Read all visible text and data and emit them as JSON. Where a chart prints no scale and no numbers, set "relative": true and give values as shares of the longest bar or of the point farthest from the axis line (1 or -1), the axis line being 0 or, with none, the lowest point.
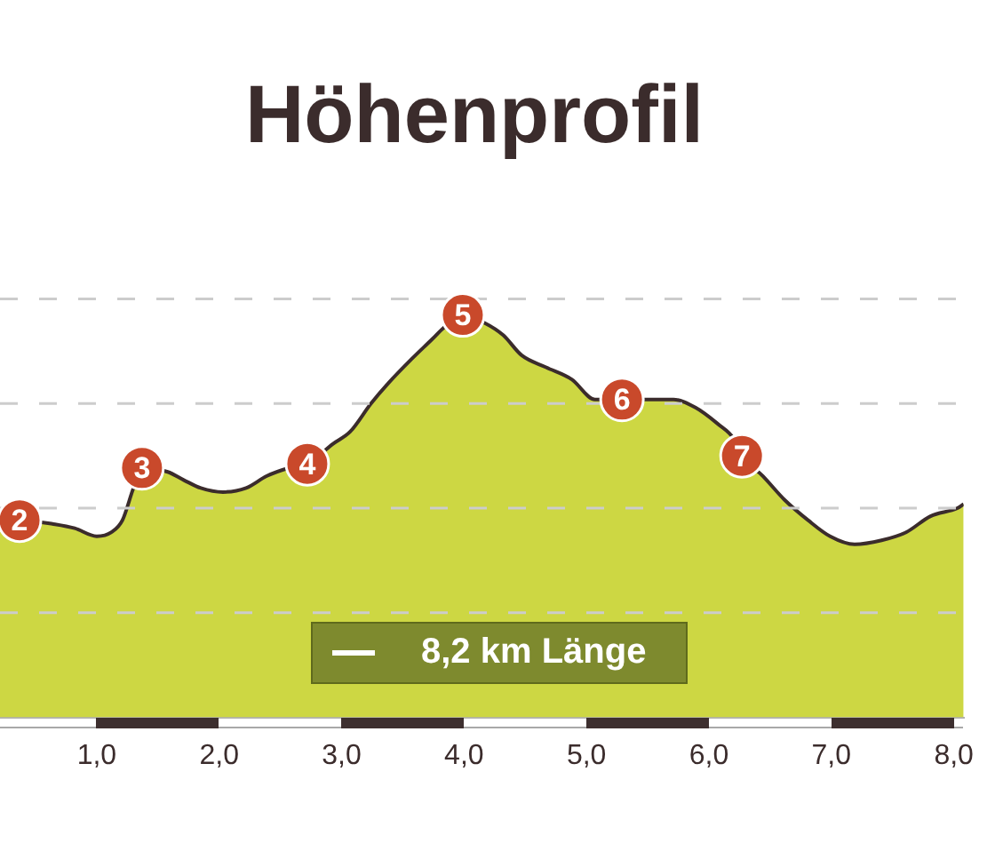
{
  "chart_data": {
    "type": "area",
    "title": "Höhenprofil",
    "relative": true,
    "x": [
      0.21,
      0.37,
      0.66,
      0.82,
      1.0,
      1.12,
      1.21,
      1.3,
      1.37,
      1.58,
      1.71,
      1.85,
      2.03,
      2.22,
      2.39,
      2.57,
      2.72,
      2.93,
      3.07,
      3.24,
      3.38,
      3.57,
      3.74,
      3.84,
      3.99,
      4.17,
      4.32,
      4.47,
      4.67,
      4.88,
      5.07,
      5.29,
      5.48,
      5.71,
      5.89,
      6.07,
      6.21,
      6.27,
      6.44,
      6.62,
      6.81,
      6.99,
      7.19,
      7.41,
      7.61,
      7.81,
      8.03,
      8.08
    ],
    "series": [
      {
        "color": "#cdd743",
        "values": [
          0.48,
          0.49,
          0.48,
          0.47,
          0.45,
          0.46,
          0.49,
          0.57,
          0.62,
          0.61,
          0.59,
          0.57,
          0.56,
          0.57,
          0.6,
          0.62,
          0.63,
          0.68,
          0.71,
          0.78,
          0.83,
          0.89,
          0.94,
          0.97,
          1.0,
          0.98,
          0.95,
          0.9,
          0.87,
          0.84,
          0.79,
          0.79,
          0.79,
          0.79,
          0.77,
          0.73,
          0.69,
          0.65,
          0.6,
          0.54,
          0.49,
          0.45,
          0.43,
          0.44,
          0.46,
          0.5,
          0.52,
          0.53
        ]
      }
    ],
    "xlim": [
      0.21,
      8.08
    ],
    "xticks": [
      {
        "value": 1,
        "label": "1,0"
      },
      {
        "value": 2,
        "label": "2,0"
      },
      {
        "value": 3,
        "label": "3,0"
      },
      {
        "value": 4,
        "label": "4,0"
      },
      {
        "value": 5,
        "label": "5,0"
      },
      {
        "value": 6,
        "label": "6,0"
      },
      {
        "value": 7,
        "label": "7,0"
      },
      {
        "value": 8,
        "label": "8,0"
      }
    ],
    "ref_lines": [
      {
        "axis": "y",
        "value": 0.26,
        "color": "#cccccc",
        "line_style": "dashed"
      },
      {
        "axis": "y",
        "value": 0.52,
        "color": "#cccccc",
        "line_style": "dashed"
      },
      {
        "axis": "y",
        "value": 0.78,
        "color": "#cccccc",
        "line_style": "dashed"
      },
      {
        "axis": "y",
        "value": 1.04,
        "color": "#cccccc",
        "line_style": "dashed"
      }
    ],
    "annotations": [
      {
        "text": "2",
        "x": 0.37,
        "y": 0.49
      },
      {
        "text": "3",
        "x": 1.37,
        "y": 0.62
      },
      {
        "text": "4",
        "x": 2.72,
        "y": 0.63
      },
      {
        "text": "5",
        "x": 3.99,
        "y": 1.0
      },
      {
        "text": "6",
        "x": 5.29,
        "y": 0.79
      },
      {
        "text": "7",
        "x": 6.27,
        "y": 0.65
      },
      "8,2 km Länge"
    ]
  }
}
